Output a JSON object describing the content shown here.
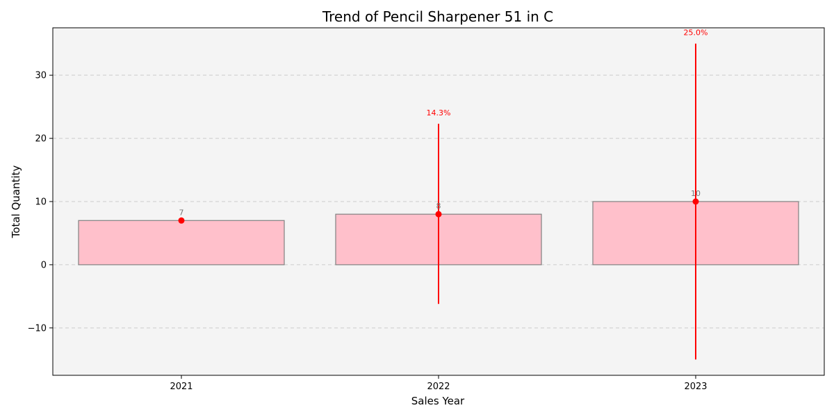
{
  "chart_data": {
    "type": "bar",
    "title": "Trend of Pencil Sharpener 51 in C",
    "xlabel": "Sales Year",
    "ylabel": "Total Quantity",
    "categories": [
      "2021",
      "2022",
      "2023"
    ],
    "values": [
      7,
      8,
      10
    ],
    "value_labels": [
      "7",
      "8",
      "10"
    ],
    "error_bars": [
      {
        "low": 7,
        "high": 7
      },
      {
        "low": -6.2,
        "high": 22.3
      },
      {
        "low": -15,
        "high": 35
      }
    ],
    "growth_labels": [
      "",
      "14.3%",
      "25.0%"
    ],
    "ylim": [
      -17.5,
      37.5
    ],
    "yticks": [
      -10,
      0,
      10,
      20,
      30
    ],
    "ytick_labels": [
      "−10",
      "0",
      "10",
      "20",
      "30"
    ],
    "grid": "horizontal dashed",
    "colors": {
      "bar_fill": "#ffc0cb",
      "bar_edge": "#808080",
      "marker": "#ff0000",
      "error_line": "#ff0000",
      "plot_background": "#f4f4f4",
      "grid": "#cccccc"
    }
  }
}
